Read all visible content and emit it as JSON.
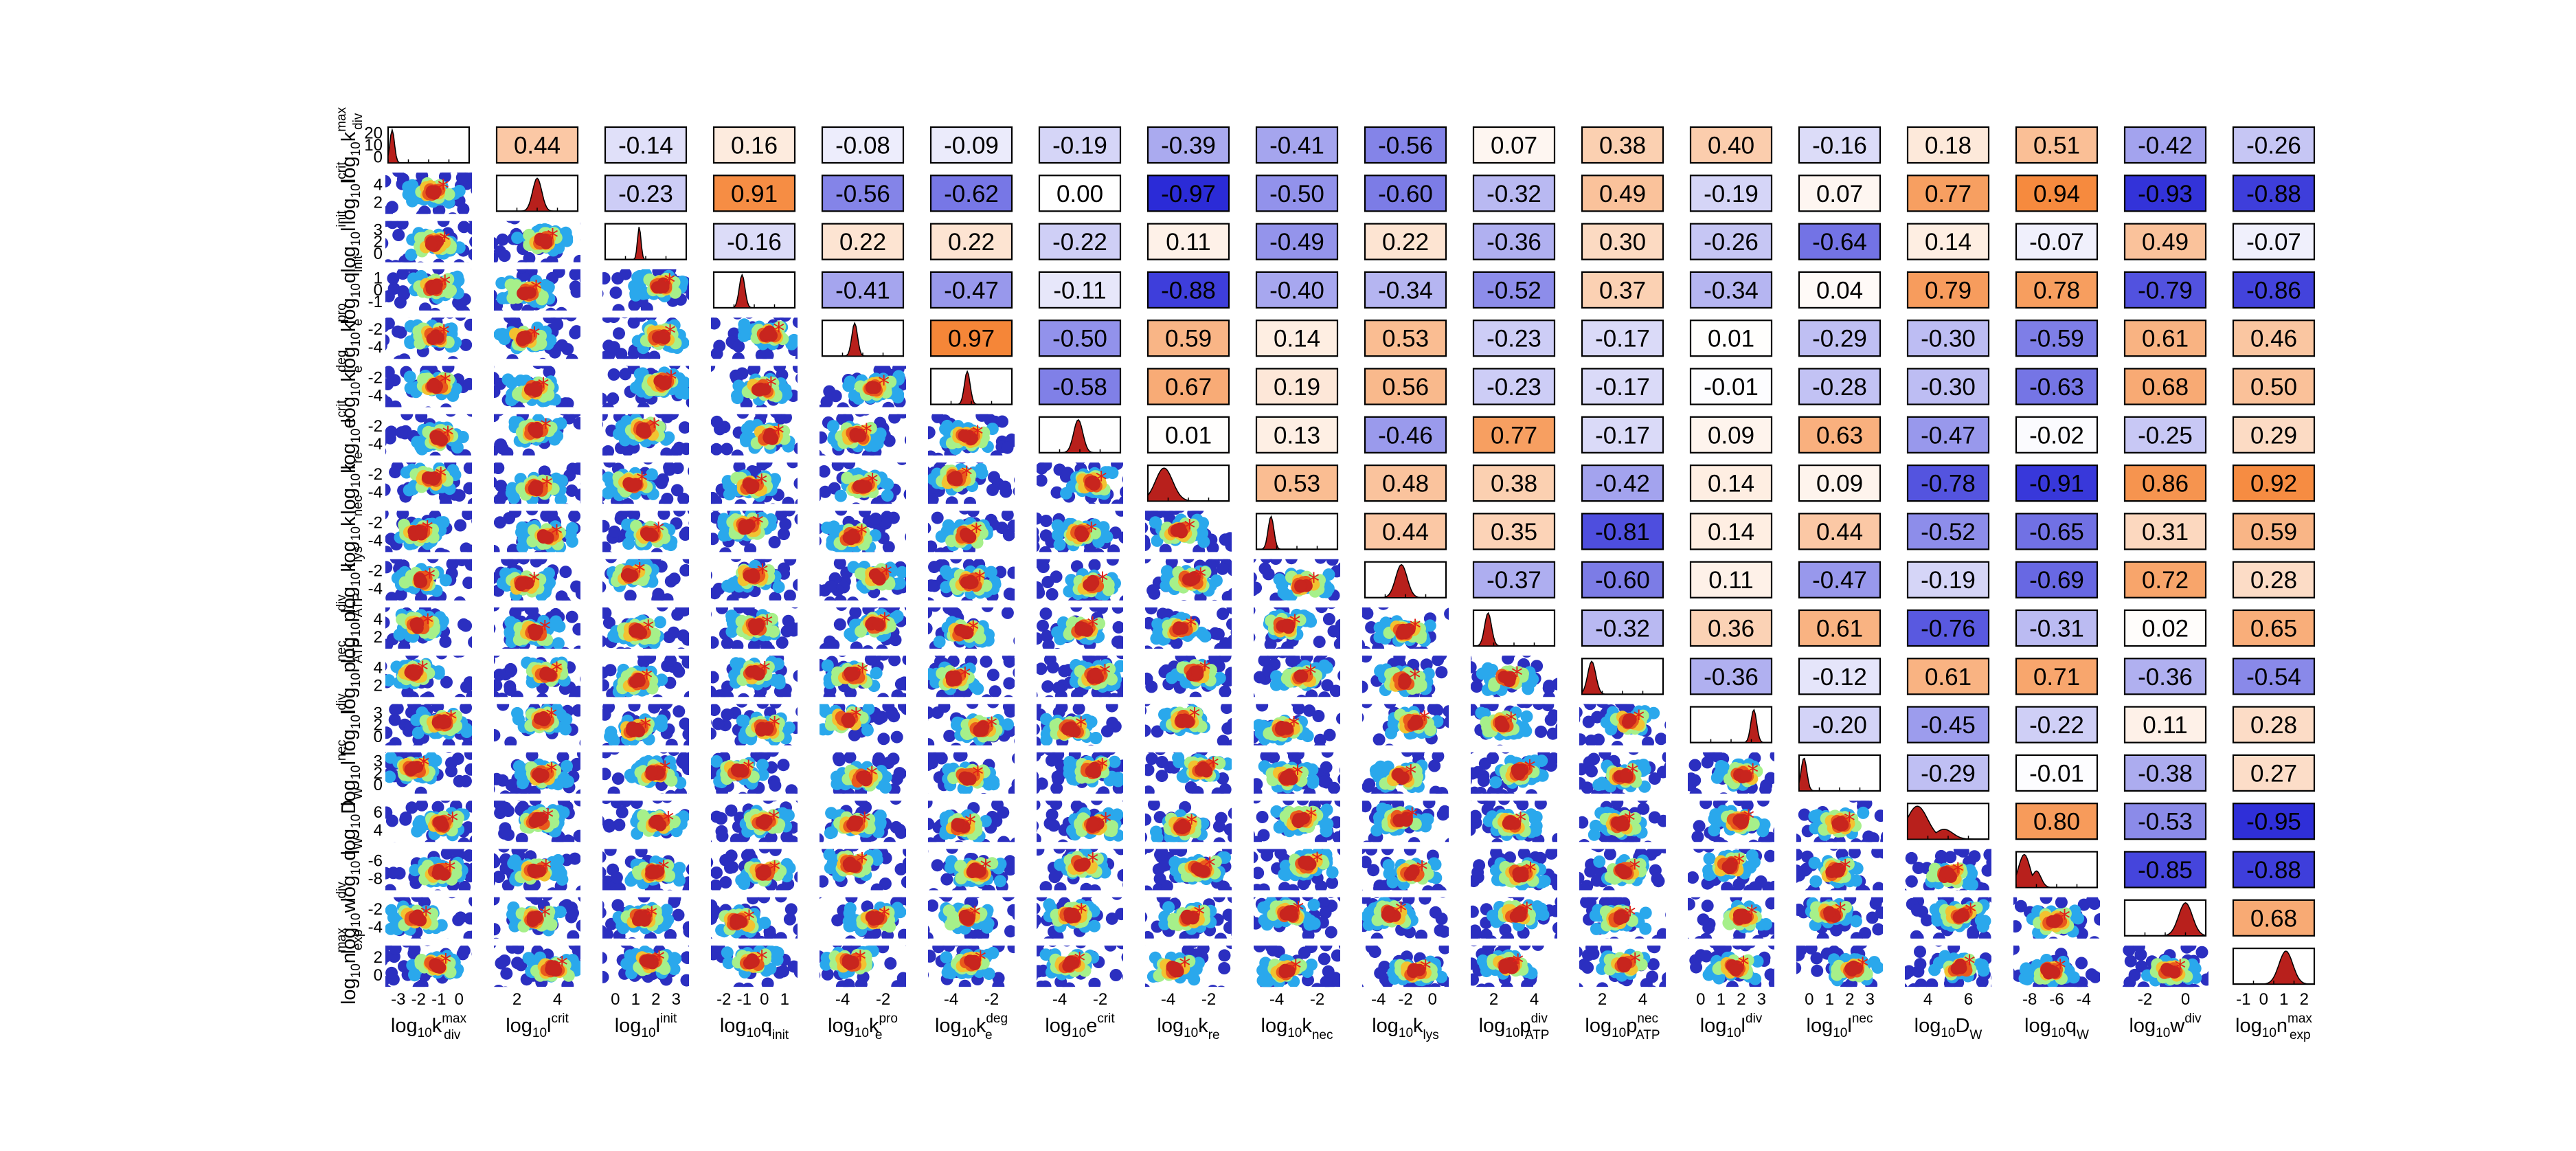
{
  "chart_data": {
    "type": "scatter-matrix",
    "title": "",
    "parameters": [
      {
        "label": "log10kmax_div",
        "base": "log",
        "sub": "10",
        "sym": "k",
        "sup": "max",
        "subsym": "div"
      },
      {
        "label": "log10l_crit",
        "base": "log",
        "sub": "10",
        "sym": "l",
        "sup": "crit",
        "subsym": ""
      },
      {
        "label": "log10l_init",
        "base": "log",
        "sub": "10",
        "sym": "l",
        "sup": "init",
        "subsym": ""
      },
      {
        "label": "log10q_init",
        "base": "log",
        "sub": "10",
        "sym": "q",
        "sup": "",
        "subsym": "init"
      },
      {
        "label": "log10kpro_e",
        "base": "log",
        "sub": "10",
        "sym": "k",
        "sup": "pro",
        "subsym": "e"
      },
      {
        "label": "log10kdeg_e",
        "base": "log",
        "sub": "10",
        "sym": "k",
        "sup": "deg",
        "subsym": "e"
      },
      {
        "label": "log10e_crit",
        "base": "log",
        "sub": "10",
        "sym": "e",
        "sup": "crit",
        "subsym": ""
      },
      {
        "label": "log10k_re",
        "base": "log",
        "sub": "10",
        "sym": "k",
        "sup": "",
        "subsym": "re"
      },
      {
        "label": "log10k_nec",
        "base": "log",
        "sub": "10",
        "sym": "k",
        "sup": "",
        "subsym": "nec"
      },
      {
        "label": "log10k_lys",
        "base": "log",
        "sub": "10",
        "sym": "k",
        "sup": "",
        "subsym": "lys"
      },
      {
        "label": "log10pdiv_ATP",
        "base": "log",
        "sub": "10",
        "sym": "p",
        "sup": "div",
        "subsym": "ATP"
      },
      {
        "label": "log10pnec_ATP",
        "base": "log",
        "sub": "10",
        "sym": "p",
        "sup": "nec",
        "subsym": "ATP"
      },
      {
        "label": "log10l_div",
        "base": "log",
        "sub": "10",
        "sym": "l",
        "sup": "div",
        "subsym": ""
      },
      {
        "label": "log10l_nec",
        "base": "log",
        "sub": "10",
        "sym": "l",
        "sup": "nec",
        "subsym": ""
      },
      {
        "label": "log10D_W",
        "base": "log",
        "sub": "10",
        "sym": "D",
        "sup": "",
        "subsym": "W"
      },
      {
        "label": "log10q_W",
        "base": "log",
        "sub": "10",
        "sym": "q",
        "sup": "",
        "subsym": "W"
      },
      {
        "label": "log10w_div",
        "base": "log",
        "sub": "10",
        "sym": "w",
        "sup": "div",
        "subsym": ""
      },
      {
        "label": "log10nmax_exp",
        "base": "log",
        "sub": "10",
        "sym": "n",
        "sup": "max",
        "subsym": "exp"
      }
    ],
    "x_ticks": [
      [
        "-3",
        "-2",
        "-1",
        "0"
      ],
      [
        "2",
        "4"
      ],
      [
        "0",
        "1",
        "2",
        "3"
      ],
      [
        "-2",
        "-1",
        "0",
        "1"
      ],
      [
        "-4",
        "-2"
      ],
      [
        "-4",
        "-2"
      ],
      [
        "-4",
        "-2"
      ],
      [
        "-4",
        "-2"
      ],
      [
        "-4",
        "-2"
      ],
      [
        "-4",
        "-2",
        "0"
      ],
      [
        "2",
        "4"
      ],
      [
        "2",
        "4"
      ],
      [
        "0",
        "1",
        "2",
        "3"
      ],
      [
        "0",
        "1",
        "2",
        "3"
      ],
      [
        "4",
        "6"
      ],
      [
        "-8",
        "-6",
        "-4"
      ],
      [
        "-2",
        "0"
      ],
      [
        "-1",
        "0",
        "1",
        "2"
      ]
    ],
    "y_ticks": [
      [
        "20",
        "10",
        "0"
      ],
      [
        "4",
        "2"
      ],
      [
        "3",
        "2",
        "0"
      ],
      [
        "1",
        "0",
        "-1"
      ],
      [
        "-2",
        "-4"
      ],
      [
        "-2",
        "-4"
      ],
      [
        "-2",
        "-4"
      ],
      [
        "-2",
        "-4"
      ],
      [
        "-2",
        "-4"
      ],
      [
        "-2",
        "-4"
      ],
      [
        "4",
        "2"
      ],
      [
        "4",
        "2"
      ],
      [
        "3",
        "2",
        "0"
      ],
      [
        "3",
        "2",
        "0"
      ],
      [
        "6",
        "4"
      ],
      [
        "-6",
        "-8"
      ],
      [
        "-2",
        "-4"
      ],
      [
        "2",
        "0"
      ]
    ],
    "correlations": [
      [
        null,
        0.44,
        -0.14,
        0.16,
        -0.08,
        -0.09,
        -0.19,
        -0.39,
        -0.41,
        -0.56,
        0.07,
        0.38,
        0.4,
        -0.16,
        0.18,
        0.51,
        -0.42,
        -0.26
      ],
      [
        null,
        null,
        -0.23,
        0.91,
        -0.56,
        -0.62,
        0.0,
        -0.97,
        -0.5,
        -0.6,
        -0.32,
        0.49,
        -0.19,
        0.07,
        0.77,
        0.94,
        -0.93,
        -0.88
      ],
      [
        null,
        null,
        null,
        -0.16,
        0.22,
        0.22,
        -0.22,
        0.11,
        -0.49,
        0.22,
        -0.36,
        0.3,
        -0.26,
        -0.64,
        0.14,
        -0.07,
        0.49,
        -0.07
      ],
      [
        null,
        null,
        null,
        null,
        -0.41,
        -0.47,
        -0.11,
        -0.88,
        -0.4,
        -0.34,
        -0.52,
        0.37,
        -0.34,
        0.04,
        0.79,
        0.78,
        -0.79,
        -0.86
      ],
      [
        null,
        null,
        null,
        null,
        null,
        0.97,
        -0.5,
        0.59,
        0.14,
        0.53,
        -0.23,
        -0.17,
        0.01,
        -0.29,
        -0.3,
        -0.59,
        0.61,
        0.46
      ],
      [
        null,
        null,
        null,
        null,
        null,
        null,
        -0.58,
        0.67,
        0.19,
        0.56,
        -0.23,
        -0.17,
        -0.01,
        -0.28,
        -0.3,
        -0.63,
        0.68,
        0.5
      ],
      [
        null,
        null,
        null,
        null,
        null,
        null,
        null,
        0.01,
        0.13,
        -0.46,
        0.77,
        -0.17,
        0.09,
        0.63,
        -0.47,
        -0.02,
        -0.25,
        0.29
      ],
      [
        null,
        null,
        null,
        null,
        null,
        null,
        null,
        null,
        0.53,
        0.48,
        0.38,
        -0.42,
        0.14,
        0.09,
        -0.78,
        -0.91,
        0.86,
        0.92
      ],
      [
        null,
        null,
        null,
        null,
        null,
        null,
        null,
        null,
        null,
        0.44,
        0.35,
        -0.81,
        0.14,
        0.44,
        -0.52,
        -0.65,
        0.31,
        0.59
      ],
      [
        null,
        null,
        null,
        null,
        null,
        null,
        null,
        null,
        null,
        null,
        -0.37,
        -0.6,
        0.11,
        -0.47,
        -0.19,
        -0.69,
        0.72,
        0.28
      ],
      [
        null,
        null,
        null,
        null,
        null,
        null,
        null,
        null,
        null,
        null,
        null,
        -0.32,
        0.36,
        0.61,
        -0.76,
        -0.31,
        0.02,
        0.65
      ],
      [
        null,
        null,
        null,
        null,
        null,
        null,
        null,
        null,
        null,
        null,
        null,
        null,
        -0.36,
        -0.12,
        0.61,
        0.71,
        -0.36,
        -0.54
      ],
      [
        null,
        null,
        null,
        null,
        null,
        null,
        null,
        null,
        null,
        null,
        null,
        null,
        null,
        -0.2,
        -0.45,
        -0.22,
        0.11,
        0.28
      ],
      [
        null,
        null,
        null,
        null,
        null,
        null,
        null,
        null,
        null,
        null,
        null,
        null,
        null,
        null,
        -0.29,
        -0.01,
        -0.38,
        0.27
      ],
      [
        null,
        null,
        null,
        null,
        null,
        null,
        null,
        null,
        null,
        null,
        null,
        null,
        null,
        null,
        null,
        0.8,
        -0.53,
        -0.95
      ],
      [
        null,
        null,
        null,
        null,
        null,
        null,
        null,
        null,
        null,
        null,
        null,
        null,
        null,
        null,
        null,
        null,
        -0.85,
        -0.88
      ],
      [
        null,
        null,
        null,
        null,
        null,
        null,
        null,
        null,
        null,
        null,
        null,
        null,
        null,
        null,
        null,
        null,
        null,
        0.68
      ],
      [
        null,
        null,
        null,
        null,
        null,
        null,
        null,
        null,
        null,
        null,
        null,
        null,
        null,
        null,
        null,
        null,
        null,
        null
      ]
    ],
    "correlation_labels": [
      [
        null,
        "0.44",
        "-0.14",
        "0.16",
        "-0.08",
        "-0.09",
        "-0.19",
        "-0.39",
        "-0.41",
        "-0.56",
        "0.07",
        "0.38",
        "0.40",
        "-0.16",
        "0.18",
        "0.51",
        "-0.42",
        "-0.26"
      ],
      [
        null,
        null,
        "-0.23",
        "0.91",
        "-0.56",
        "-0.62",
        "0.00",
        "-0.97",
        "-0.50",
        "-0.60",
        "-0.32",
        "0.49",
        "-0.19",
        "0.07",
        "0.77",
        "0.94",
        "-0.93",
        "-0.88"
      ],
      [
        null,
        null,
        null,
        "-0.16",
        "0.22",
        "0.22",
        "-0.22",
        "0.11",
        "-0.49",
        "0.22",
        "-0.36",
        "0.30",
        "-0.26",
        "-0.64",
        "0.14",
        "-0.07",
        "0.49",
        "-0.07"
      ],
      [
        null,
        null,
        null,
        null,
        "-0.41",
        "-0.47",
        "-0.11",
        "-0.88",
        "-0.40",
        "-0.34",
        "-0.52",
        "0.37",
        "-0.34",
        "0.04",
        "0.79",
        "0.78",
        "-0.79",
        "-0.86"
      ],
      [
        null,
        null,
        null,
        null,
        null,
        "0.97",
        "-0.50",
        "0.59",
        "0.14",
        "0.53",
        "-0.23",
        "-0.17",
        "0.01",
        "-0.29",
        "-0.30",
        "-0.59",
        "0.61",
        "0.46"
      ],
      [
        null,
        null,
        null,
        null,
        null,
        null,
        "-0.58",
        "0.67",
        "0.19",
        "0.56",
        "-0.23",
        "-0.17",
        "-0.01",
        "-0.28",
        "-0.30",
        "-0.63",
        "0.68",
        "0.50"
      ],
      [
        null,
        null,
        null,
        null,
        null,
        null,
        null,
        "0.01",
        "0.13",
        "-0.46",
        "0.77",
        "-0.17",
        "0.09",
        "0.63",
        "-0.47",
        "-0.02",
        "-0.25",
        "0.29"
      ],
      [
        null,
        null,
        null,
        null,
        null,
        null,
        null,
        null,
        "0.53",
        "0.48",
        "0.38",
        "-0.42",
        "0.14",
        "0.09",
        "-0.78",
        "-0.91",
        "0.86",
        "0.92"
      ],
      [
        null,
        null,
        null,
        null,
        null,
        null,
        null,
        null,
        null,
        "0.44",
        "0.35",
        "-0.81",
        "0.14",
        "0.44",
        "-0.52",
        "-0.65",
        "0.31",
        "0.59"
      ],
      [
        null,
        null,
        null,
        null,
        null,
        null,
        null,
        null,
        null,
        null,
        "-0.37",
        "-0.60",
        "0.11",
        "-0.47",
        "-0.19",
        "-0.69",
        "0.72",
        "0.28"
      ],
      [
        null,
        null,
        null,
        null,
        null,
        null,
        null,
        null,
        null,
        null,
        null,
        "-0.32",
        "0.36",
        "0.61",
        "-0.76",
        "-0.31",
        "0.02",
        "0.65"
      ],
      [
        null,
        null,
        null,
        null,
        null,
        null,
        null,
        null,
        null,
        null,
        null,
        null,
        "-0.36",
        "-0.12",
        "0.61",
        "0.71",
        "-0.36",
        "-0.54"
      ],
      [
        null,
        null,
        null,
        null,
        null,
        null,
        null,
        null,
        null,
        null,
        null,
        null,
        null,
        "-0.20",
        "-0.45",
        "-0.22",
        "0.11",
        "0.28"
      ],
      [
        null,
        null,
        null,
        null,
        null,
        null,
        null,
        null,
        null,
        null,
        null,
        null,
        null,
        null,
        "-0.29",
        "-0.01",
        "-0.38",
        "0.27"
      ],
      [
        null,
        null,
        null,
        null,
        null,
        null,
        null,
        null,
        null,
        null,
        null,
        null,
        null,
        null,
        null,
        "0.80",
        "-0.53",
        "-0.95"
      ],
      [
        null,
        null,
        null,
        null,
        null,
        null,
        null,
        null,
        null,
        null,
        null,
        null,
        null,
        null,
        null,
        null,
        "-0.85",
        "-0.88"
      ],
      [
        null,
        null,
        null,
        null,
        null,
        null,
        null,
        null,
        null,
        null,
        null,
        null,
        null,
        null,
        null,
        null,
        null,
        "0.68"
      ],
      [
        null,
        null,
        null,
        null,
        null,
        null,
        null,
        null,
        null,
        null,
        null,
        null,
        null,
        null,
        null,
        null,
        null,
        null
      ]
    ],
    "lower_triangle": "2D posterior density scatter (blue → cyan → yellow → orange → red) with red star at best estimate",
    "diagonal": "1D marginal posterior histogram (dark red fill)",
    "colors": {
      "positive_max": "#f58232",
      "negative_max": "#2424d6",
      "neutral": "#ffffff",
      "density": [
        "#2b2fc0",
        "#2aa8ec",
        "#a6f08a",
        "#f2c230",
        "#e95a1c",
        "#c8251e"
      ],
      "histogram": "#b8201c",
      "star": "#e0201a"
    }
  }
}
